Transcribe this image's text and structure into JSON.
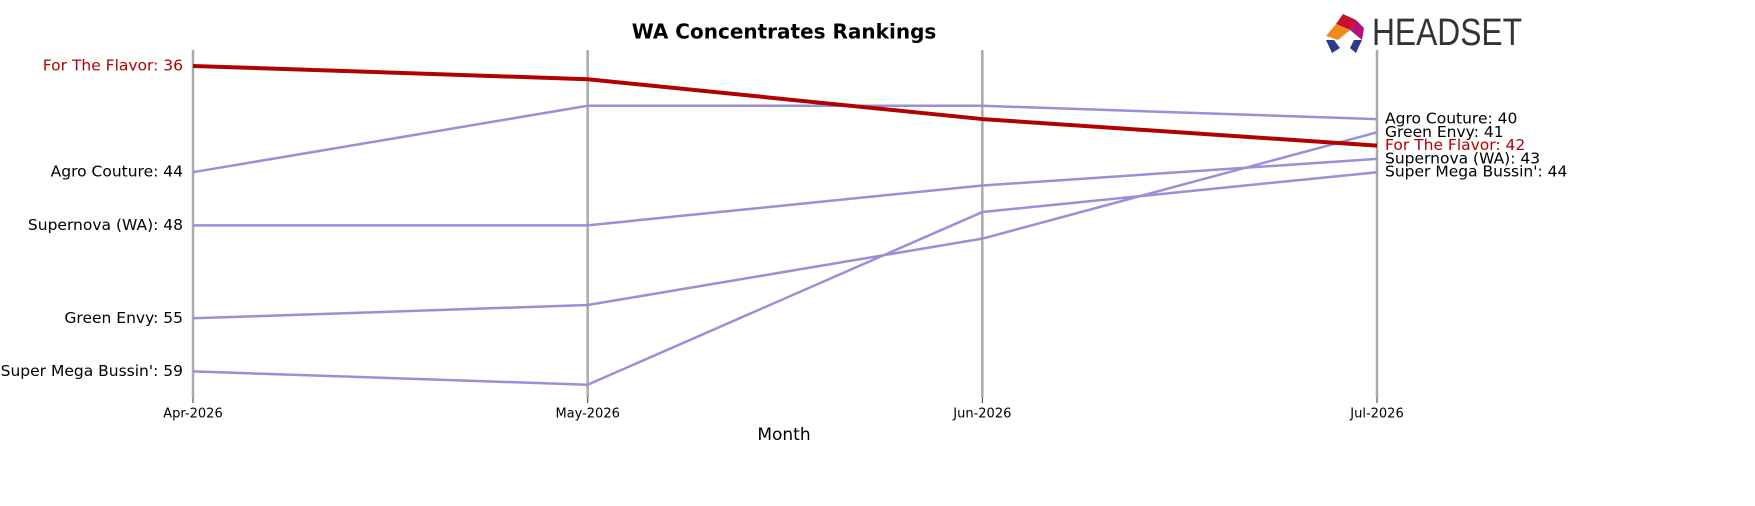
{
  "chart_data": {
    "type": "line",
    "title": "WA Concentrates Rankings",
    "logo": "HEADSET",
    "x_label": "Month",
    "categories": [
      "Apr-2026",
      "May-2026",
      "Jun-2026",
      "Jul-2026"
    ],
    "ylim": [
      34.8,
      61
    ],
    "y_inverted": true,
    "grid": true,
    "series": [
      {
        "name": "Agro Couture",
        "color": "#9b8fd8",
        "values": [
          44,
          39,
          39,
          40
        ],
        "value_labels": [
          "Agro Couture: 44",
          null,
          null,
          "Agro Couture: 40"
        ]
      },
      {
        "name": "Supernova (WA)",
        "color": "#9b8fd8",
        "values": [
          48,
          48,
          45,
          43
        ],
        "value_labels": [
          "Supernova (WA): 48",
          null,
          null,
          "Supernova (WA): 43"
        ]
      },
      {
        "name": "Green Envy",
        "color": "#9b8fd8",
        "values": [
          55,
          54,
          49,
          41
        ],
        "value_labels": [
          "Green Envy: 55",
          null,
          null,
          "Green Envy: 41"
        ]
      },
      {
        "name": "Super Mega Bussin'",
        "color": "#9b8fd8",
        "values": [
          59,
          60,
          47,
          44
        ],
        "value_labels": [
          "Super Mega Bussin': 59",
          null,
          null,
          "Super Mega Bussin': 44"
        ]
      },
      {
        "name": "For The Flavor",
        "color": "#b30000",
        "highlight": true,
        "values": [
          36,
          37,
          40,
          42
        ],
        "value_labels": [
          "For The Flavor: 36",
          null,
          null,
          "For The Flavor: 42"
        ]
      }
    ]
  }
}
